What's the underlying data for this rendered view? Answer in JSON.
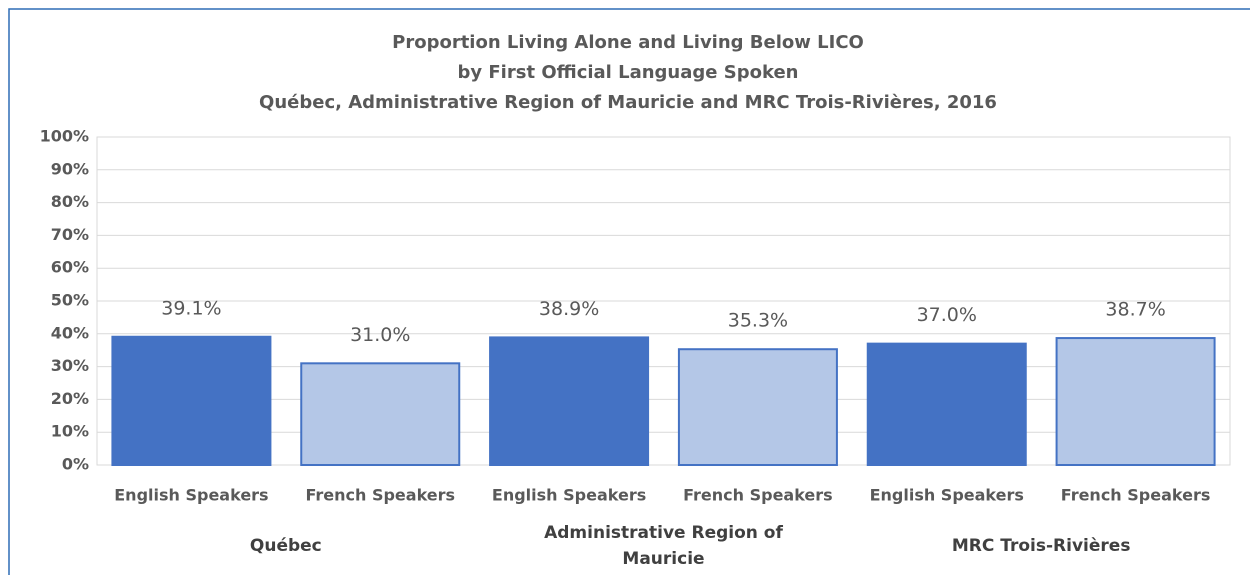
{
  "chart_data": {
    "type": "bar",
    "title": [
      "Proportion Living Alone and Living Below LICO",
      "by First Official Language Spoken",
      "Québec, Administrative Region of Mauricie and MRC Trois-Rivières, 2016"
    ],
    "categories": [
      "English Speakers",
      "French Speakers",
      "English Speakers",
      "French Speakers",
      "English Speakers",
      "French Speakers"
    ],
    "groups": [
      "Québec",
      "Administrative Region of Mauricie",
      "MRC Trois-Rivières"
    ],
    "values": [
      39.1,
      31.0,
      38.9,
      35.3,
      37.0,
      38.7
    ],
    "value_labels": [
      "39.1%",
      "31.0%",
      "38.9%",
      "35.3%",
      "37.0%",
      "38.7%"
    ],
    "colors": [
      "#4472c4",
      "#b4c7e7",
      "#4472c4",
      "#b4c7e7",
      "#4472c4",
      "#b4c7e7"
    ],
    "ylim": [
      0,
      100
    ],
    "yticks": [
      {
        "value": 0,
        "label": "0%"
      },
      {
        "value": 10,
        "label": "10%"
      },
      {
        "value": 20,
        "label": "20%"
      },
      {
        "value": 30,
        "label": "30%"
      },
      {
        "value": 40,
        "label": "40%"
      },
      {
        "value": 50,
        "label": "50%"
      },
      {
        "value": 60,
        "label": "60%"
      },
      {
        "value": 70,
        "label": "70%"
      },
      {
        "value": 80,
        "label": "80%"
      },
      {
        "value": 90,
        "label": "90%"
      },
      {
        "value": 100,
        "label": "100%"
      }
    ],
    "grid": true
  }
}
